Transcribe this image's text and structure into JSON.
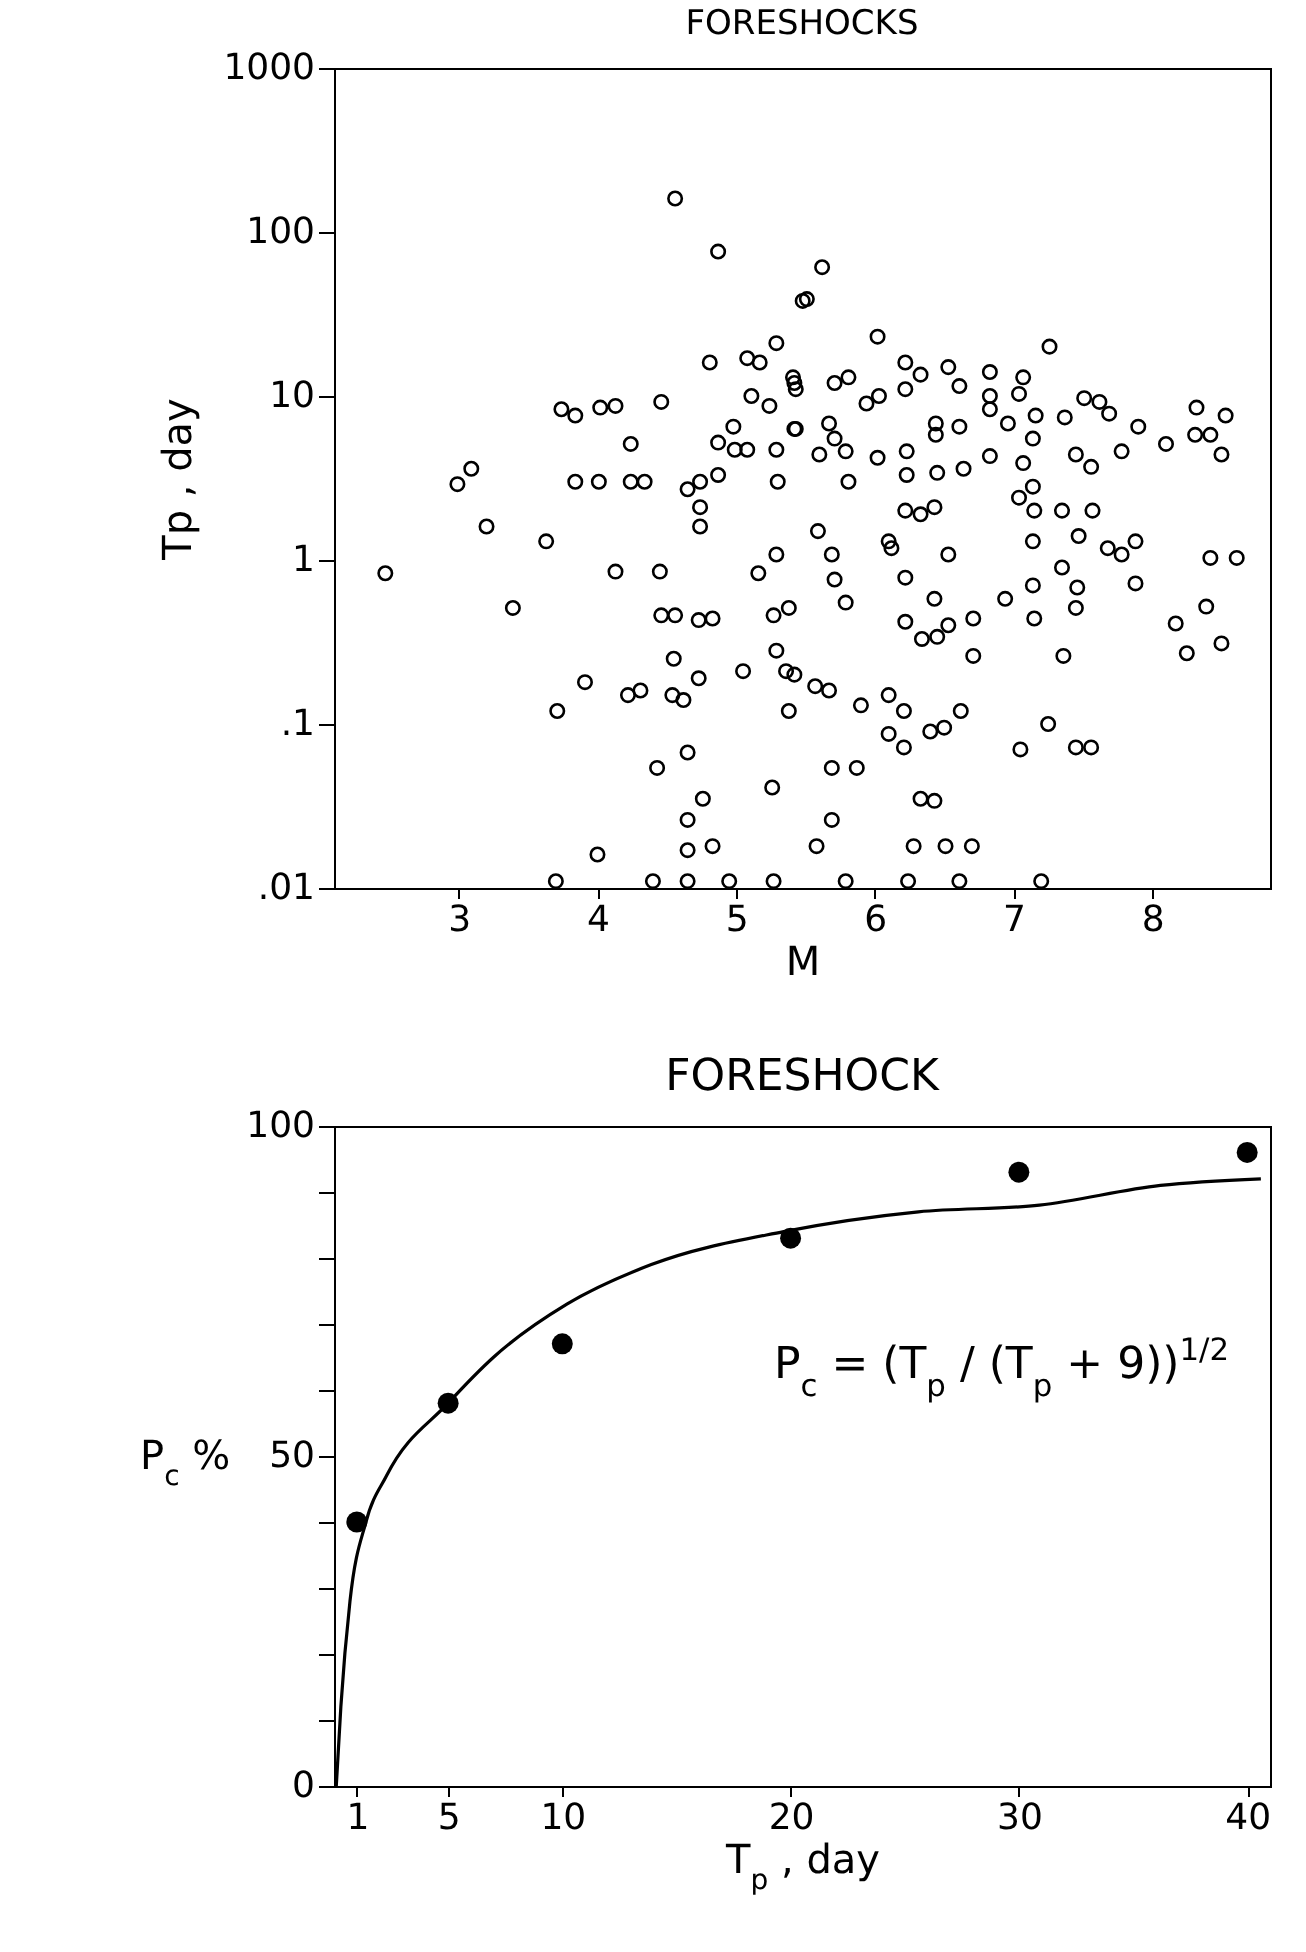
{
  "chart_data": [
    {
      "type": "scatter",
      "title": "FORESHOCKS",
      "xlabel": "M",
      "ylabel": "Tp , day",
      "log": "y",
      "marker": "circle",
      "color": "#000000",
      "xlim": [
        2.1,
        8.85
      ],
      "ylim": [
        0.01,
        1000
      ],
      "xticks": [
        3,
        4,
        5,
        6,
        7,
        8
      ],
      "yticks": [
        {
          "value": 0.01,
          "label": ".01"
        },
        {
          "value": 0.1,
          "label": ".1"
        },
        1,
        10,
        100,
        1000
      ],
      "x": [
        4.56,
        4.87,
        5.48,
        5.29,
        4.81,
        5.08,
        5.17,
        3.74,
        3.84,
        4.02,
        4.13,
        4.46,
        4.24,
        4.87,
        4.98,
        4.99,
        5.08,
        5.29,
        5.11,
        5.24,
        5.41,
        5.43,
        5.43,
        2.99,
        3.09,
        3.84,
        4.01,
        4.24,
        4.34,
        4.65,
        4.74,
        4.87,
        5.3,
        3.2,
        3.63,
        4.74,
        4.74,
        5.62,
        5.51,
        6.02,
        7.26,
        5.42,
        5.71,
        5.81,
        5.94,
        6.03,
        6.22,
        6.22,
        6.33,
        6.53,
        6.61,
        6.83,
        6.83,
        6.83,
        7.07,
        7.04,
        6.96,
        7.16,
        7.51,
        7.62,
        7.69,
        7.37,
        7.9,
        8.32,
        8.53,
        5.42,
        5.67,
        5.71,
        5.6,
        5.79,
        6.02,
        6.23,
        6.23,
        6.44,
        6.44,
        6.61,
        6.45,
        6.64,
        6.83,
        7.07,
        7.14,
        7.45,
        7.56,
        7.78,
        8.1,
        8.31,
        8.42,
        8.5,
        5.81,
        7.04,
        7.14,
        7.15,
        7.35,
        7.57,
        6.22,
        6.33,
        6.43,
        5.59,
        6.1,
        7.14,
        2.47,
        3.39,
        4.13,
        4.45,
        5.16,
        5.29,
        4.46,
        4.56,
        4.73,
        4.83,
        5.27,
        5.38,
        4.55,
        5.05,
        5.29,
        5.36,
        5.38,
        3.91,
        4.22,
        4.31,
        4.54,
        4.62,
        4.73,
        3.71,
        4.65,
        4.43,
        5.26,
        4.76,
        4.65,
        4.0,
        4.65,
        4.83,
        4.65,
        5.27,
        7.47,
        7.68,
        7.78,
        7.88,
        5.69,
        6.12,
        6.53,
        8.42,
        8.61,
        5.71,
        5.79,
        6.22,
        6.43,
        6.94,
        7.14,
        7.35,
        7.46,
        7.45,
        7.88,
        8.39,
        8.17,
        8.25,
        8.5,
        6.22,
        6.34,
        6.45,
        6.53,
        6.71,
        6.71,
        7.15,
        7.36,
        5.42,
        5.57,
        5.67,
        5.9,
        6.1,
        6.21,
        6.62,
        6.1,
        6.21,
        6.4,
        6.5,
        7.25,
        7.05,
        7.45,
        7.56,
        5.69,
        5.87,
        6.33,
        6.43,
        5.69,
        5.58,
        6.28,
        6.51,
        6.7,
        5.79,
        3.7,
        4.4,
        4.95,
        6.24,
        6.61,
        7.2
      ],
      "values": [
        160,
        76,
        38,
        21,
        16,
        17,
        16,
        8.3,
        7.6,
        8.5,
        8.7,
        9.2,
        5.1,
        5.2,
        6.5,
        4.7,
        4.7,
        4.7,
        10,
        8.7,
        13,
        6.3,
        11,
        2.9,
        3.6,
        3.0,
        3.0,
        3.0,
        3.0,
        2.7,
        3.0,
        3.3,
        3.0,
        1.6,
        1.3,
        2.1,
        1.6,
        61,
        39,
        23,
        20,
        12,
        12,
        13,
        9.0,
        10,
        11,
        16,
        13.5,
        15,
        11.5,
        14,
        10,
        8.3,
        13,
        10.3,
        6.8,
        7.6,
        9.7,
        9.2,
        7.8,
        7.4,
        6.5,
        8.5,
        7.6,
        6.3,
        6.8,
        5.5,
        4.4,
        4.6,
        4.2,
        4.6,
        3.3,
        6.8,
        5.8,
        6.5,
        3.4,
        3.6,
        4.3,
        3.9,
        5.5,
        4.4,
        3.7,
        4.6,
        5.1,
        5.8,
        5.8,
        4.4,
        3.0,
        2.4,
        2.8,
        2.0,
        2.0,
        2.0,
        2.0,
        1.9,
        2.1,
        1.5,
        1.3,
        1.3,
        0.83,
        0.51,
        0.85,
        0.85,
        0.83,
        1.08,
        0.46,
        0.46,
        0.43,
        0.44,
        0.46,
        0.51,
        0.25,
        0.21,
        0.28,
        0.21,
        0.12,
        0.18,
        0.15,
        0.16,
        0.15,
        0.14,
        0.19,
        0.12,
        0.067,
        0.054,
        0.041,
        0.035,
        0.026,
        0.016,
        0.017,
        0.018,
        0.011,
        0.011,
        1.4,
        1.18,
        1.08,
        1.3,
        1.08,
        1.18,
        1.08,
        1.03,
        1.03,
        0.76,
        0.55,
        0.78,
        0.58,
        0.58,
        0.7,
        0.9,
        0.68,
        0.51,
        0.72,
        0.52,
        0.41,
        0.27,
        0.31,
        0.42,
        0.33,
        0.34,
        0.4,
        0.44,
        0.26,
        0.44,
        0.26,
        0.2,
        0.17,
        0.16,
        0.13,
        0.15,
        0.12,
        0.12,
        0.087,
        0.072,
        0.09,
        0.095,
        0.1,
        0.07,
        0.072,
        0.072,
        0.054,
        0.054,
        0.035,
        0.034,
        0.026,
        0.018,
        0.018,
        0.018,
        0.018,
        0.011,
        0.011,
        0.011,
        0.011,
        0.011,
        0.011,
        0.011
      ]
    },
    {
      "type": "line",
      "title": "FORESHOCK",
      "xlabel": "T$_{p}$ ,   day",
      "ylabel": "P$_{c}$ %",
      "xlim": [
        0,
        41
      ],
      "ylim": [
        0,
        100
      ],
      "xticks": [
        1,
        5,
        10,
        20,
        30,
        40
      ],
      "yticks": [
        0,
        {
          "value": 10,
          "label": null
        },
        {
          "value": 20,
          "label": null
        },
        {
          "value": 30,
          "label": null
        },
        {
          "value": 40,
          "label": null
        },
        50,
        {
          "value": 60,
          "label": null
        },
        {
          "value": 70,
          "label": null
        },
        {
          "value": 80,
          "label": null
        },
        {
          "value": 90,
          "label": null
        },
        100
      ],
      "annotations": [
        "P$_{c}$ = (T$_{p}$ / (T$_{p}$ + 9))$^{1/2}$"
      ],
      "series": [
        {
          "type": "line",
          "marker": "none",
          "color": "#000000",
          "x": [
            0.1,
            0.3,
            0.7,
            1.4,
            2.3,
            5,
            7,
            10.2,
            13.9,
            19.7,
            25.6,
            30.9,
            36.2,
            40.6
          ],
          "values": [
            0,
            12,
            28,
            40,
            47,
            58,
            65,
            73,
            79,
            84,
            87,
            88,
            91,
            92
          ]
        },
        {
          "type": "scatter",
          "marker": "circle",
          "color": "#000000",
          "x": [
            1,
            5,
            10,
            20,
            30,
            40
          ],
          "values": [
            40,
            58,
            67,
            83,
            93,
            96
          ]
        }
      ]
    }
  ]
}
